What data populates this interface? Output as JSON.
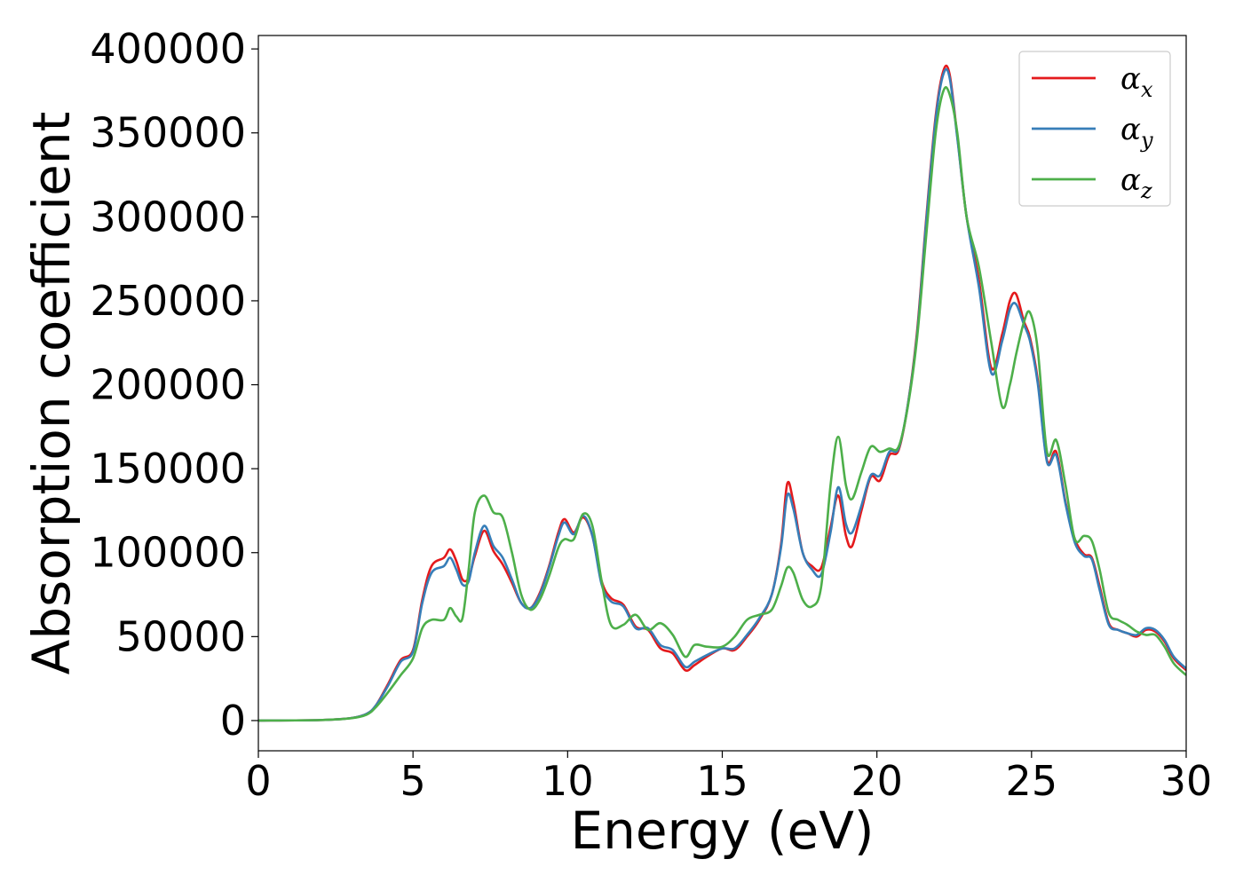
{
  "chart_data": {
    "type": "line",
    "title": "",
    "xlabel": "Energy (eV)",
    "ylabel": "Absorption coefficient",
    "xlim": [
      0,
      30
    ],
    "ylim": [
      -18000,
      408000
    ],
    "xticks": [
      0,
      5,
      10,
      15,
      20,
      25,
      30
    ],
    "yticks": [
      0,
      50000,
      100000,
      150000,
      200000,
      250000,
      300000,
      350000,
      400000
    ],
    "grid": false,
    "legend_position": "top-right",
    "x": [
      0,
      2,
      3,
      3.5,
      3.8,
      4.2,
      4.6,
      5.0,
      5.3,
      5.6,
      6.0,
      6.2,
      6.4,
      6.6,
      6.8,
      7.0,
      7.3,
      7.6,
      7.9,
      8.2,
      8.5,
      8.8,
      9.1,
      9.4,
      9.7,
      9.9,
      10.2,
      10.5,
      10.8,
      11.1,
      11.4,
      11.8,
      12.2,
      12.6,
      13.0,
      13.4,
      13.8,
      14.1,
      14.5,
      15.0,
      15.4,
      15.8,
      16.2,
      16.6,
      16.9,
      17.1,
      17.3,
      17.6,
      17.9,
      18.2,
      18.5,
      18.75,
      19.0,
      19.2,
      19.5,
      19.8,
      20.1,
      20.4,
      20.7,
      21.0,
      21.3,
      21.6,
      21.9,
      22.15,
      22.35,
      22.6,
      22.9,
      23.3,
      23.7,
      24.05,
      24.3,
      24.5,
      24.75,
      24.95,
      25.2,
      25.5,
      25.8,
      26.1,
      26.4,
      26.7,
      26.95,
      27.2,
      27.5,
      27.8,
      28.1,
      28.4,
      28.7,
      29.0,
      29.3,
      29.6,
      30.0
    ],
    "series": [
      {
        "name": "x",
        "color": "#e41a1c",
        "values": [
          0,
          300,
          1500,
          4000,
          9000,
          22000,
          36000,
          42000,
          72000,
          92000,
          97000,
          102000,
          95000,
          84000,
          85000,
          98000,
          113000,
          101000,
          93000,
          82000,
          70000,
          67000,
          76000,
          92000,
          112000,
          120000,
          112000,
          121000,
          110000,
          83000,
          73000,
          69000,
          56000,
          54000,
          43000,
          40000,
          30000,
          33000,
          38000,
          43000,
          42000,
          50000,
          60000,
          75000,
          105000,
          141000,
          130000,
          100000,
          92000,
          91000,
          115000,
          134000,
          110000,
          104000,
          125000,
          145000,
          143000,
          158000,
          161000,
          188000,
          232000,
          300000,
          360000,
          387000,
          385000,
          348000,
          300000,
          262000,
          210000,
          230000,
          250000,
          254000,
          238000,
          228000,
          203000,
          155000,
          160000,
          130000,
          108000,
          99000,
          97000,
          80000,
          58000,
          54000,
          52000,
          50000,
          54000,
          53000,
          47000,
          37000,
          30000
        ]
      },
      {
        "name": "y",
        "color": "#377eb8",
        "values": [
          0,
          300,
          1500,
          4000,
          9000,
          21000,
          35000,
          41000,
          70000,
          88000,
          92000,
          97000,
          90000,
          81000,
          83000,
          100000,
          116000,
          104000,
          97000,
          84000,
          70000,
          67000,
          75000,
          91000,
          110000,
          118000,
          111000,
          122000,
          110000,
          81000,
          71000,
          68000,
          55000,
          55000,
          45000,
          42000,
          32000,
          35000,
          39000,
          43000,
          43000,
          51000,
          61000,
          75000,
          103000,
          134000,
          126000,
          100000,
          90000,
          87000,
          112000,
          139000,
          117000,
          112000,
          128000,
          146000,
          146000,
          160000,
          162000,
          188000,
          230000,
          298000,
          358000,
          385000,
          383000,
          347000,
          300000,
          258000,
          207000,
          226000,
          245000,
          248000,
          236000,
          226000,
          201000,
          154000,
          158000,
          129000,
          106000,
          98000,
          96000,
          78000,
          57000,
          54000,
          52000,
          51000,
          55000,
          54000,
          48000,
          38000,
          31000
        ]
      },
      {
        "name": "z",
        "color": "#4daf4a",
        "values": [
          0,
          300,
          1400,
          3500,
          8000,
          17000,
          27000,
          37000,
          55000,
          60000,
          60000,
          67000,
          62000,
          61000,
          90000,
          124000,
          134000,
          124000,
          121000,
          100000,
          75000,
          66000,
          72000,
          86000,
          103000,
          108000,
          108000,
          123000,
          116000,
          83000,
          57000,
          57000,
          63000,
          54000,
          58000,
          51000,
          38000,
          45000,
          44000,
          44000,
          50000,
          60000,
          63000,
          66000,
          80000,
          91000,
          88000,
          72000,
          68000,
          80000,
          140000,
          169000,
          140000,
          132000,
          148000,
          163000,
          160000,
          162000,
          163000,
          187000,
          228000,
          290000,
          350000,
          375000,
          373000,
          350000,
          300000,
          270000,
          225000,
          187000,
          200000,
          218000,
          237000,
          243000,
          221000,
          160000,
          167000,
          140000,
          108000,
          110000,
          107000,
          90000,
          64000,
          60000,
          57000,
          53000,
          51000,
          51000,
          44000,
          34000,
          27000
        ]
      }
    ]
  },
  "legend": [
    {
      "base": "α",
      "sub": "x"
    },
    {
      "base": "α",
      "sub": "y"
    },
    {
      "base": "α",
      "sub": "z"
    }
  ]
}
